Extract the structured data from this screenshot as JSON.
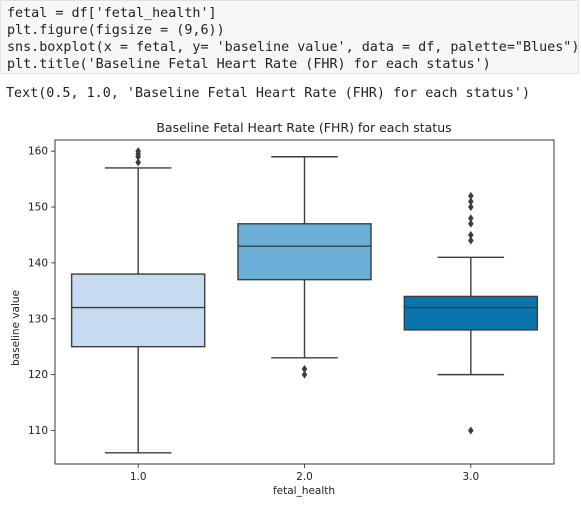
{
  "code_cell": {
    "lines": [
      "fetal = df['fetal_health']",
      "plt.figure(figsize = (9,6))",
      "sns.boxplot(x = fetal, y= 'baseline value', data = df, palette=\"Blues\")",
      "plt.title('Baseline Fetal Heart Rate (FHR) for each status')"
    ]
  },
  "output": {
    "text": "Text(0.5, 1.0, 'Baseline Fetal Heart Rate (FHR) for each status')"
  },
  "chart_data": {
    "type": "box",
    "title": "Baseline Fetal Heart Rate (FHR) for each status",
    "xlabel": "fetal_health",
    "ylabel": "baseline value",
    "categories": [
      "1.0",
      "2.0",
      "3.0"
    ],
    "ylim": [
      104,
      162
    ],
    "yticks": [
      110,
      120,
      130,
      140,
      150,
      160
    ],
    "grid": false,
    "colors": [
      "#c6dbef",
      "#6baed6",
      "#0a74ad"
    ],
    "boxes": [
      {
        "whisker_low": 106,
        "q1": 125,
        "median": 132,
        "q3": 138,
        "whisker_high": 157,
        "outliers": [
          158,
          159,
          159.5,
          160
        ]
      },
      {
        "whisker_low": 123,
        "q1": 137,
        "median": 143,
        "q3": 147,
        "whisker_high": 159,
        "outliers": [
          120,
          121
        ]
      },
      {
        "whisker_low": 120,
        "q1": 128,
        "median": 132,
        "q3": 134,
        "whisker_high": 141,
        "outliers": [
          110,
          144,
          145,
          147,
          148,
          150,
          151,
          152
        ]
      }
    ]
  }
}
